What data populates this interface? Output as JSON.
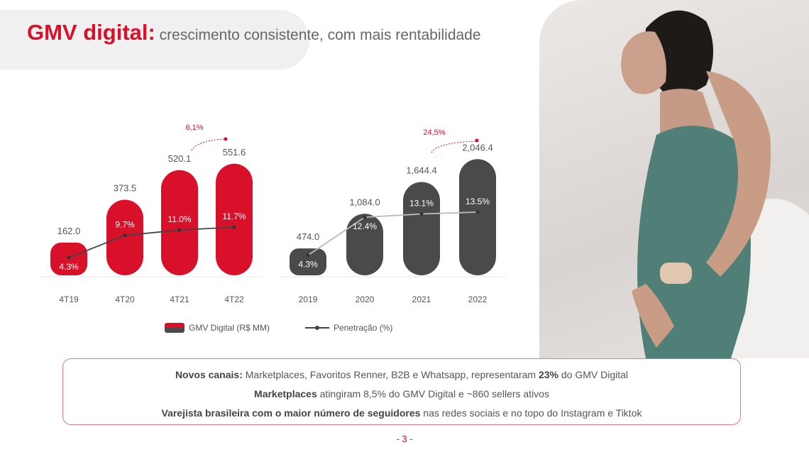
{
  "header": {
    "title_accent": "GMV digital:",
    "title_rest": " crescimento consistente, com mais rentabilidade"
  },
  "colors": {
    "red": "#d8102a",
    "gray": "#4a4a4a",
    "line": "#444444"
  },
  "chart_data": [
    {
      "type": "bar",
      "categories": [
        "4T19",
        "4T20",
        "4T21",
        "4T22"
      ],
      "bar_color": "#d8102a",
      "series": [
        {
          "name": "GMV Digital (R$ MM)",
          "values": [
            162.0,
            373.5,
            520.1,
            551.6
          ],
          "labels": [
            "162.0",
            "373.5",
            "520.1",
            "551.6"
          ]
        },
        {
          "name": "Penetração (%)",
          "type": "line",
          "values": [
            4.3,
            9.7,
            11.0,
            11.7
          ],
          "labels": [
            "4.3%",
            "9.7%",
            "11.0%",
            "11.7%"
          ]
        }
      ],
      "annotation": "6,1%"
    },
    {
      "type": "bar",
      "categories": [
        "2019",
        "2020",
        "2021",
        "2022"
      ],
      "bar_color": "#4a4a4a",
      "series": [
        {
          "name": "GMV Digital (R$ MM)",
          "values": [
            474.0,
            1084.0,
            1644.4,
            2046.4
          ],
          "labels": [
            "474.0",
            "1,084.0",
            "1,644.4",
            "2,046.4"
          ]
        },
        {
          "name": "Penetração (%)",
          "type": "line",
          "values": [
            4.3,
            12.4,
            13.1,
            13.5
          ],
          "labels": [
            "4.3%",
            "12.4%",
            "13.1%",
            "13.5%"
          ]
        }
      ],
      "annotation": "24,5%"
    }
  ],
  "legend": {
    "bars": "GMV Digital (R$ MM)",
    "line": "Penetração (%)"
  },
  "highlights": [
    {
      "bold": "Novos canais:",
      "text": " Marketplaces, Favoritos Renner, B2B e Whatsapp, representaram ",
      "bold2": "23%",
      "text2": " do GMV Digital"
    },
    {
      "bold": "Marketplaces",
      "text": " atingiram 8,5% do GMV Digital e ~860 sellers ativos"
    },
    {
      "bold": "Varejista brasileira com o maior número de seguidores",
      "text": " nas redes sociais e no topo do Instagram e Tiktok"
    }
  ],
  "page_number": "- 3 -"
}
